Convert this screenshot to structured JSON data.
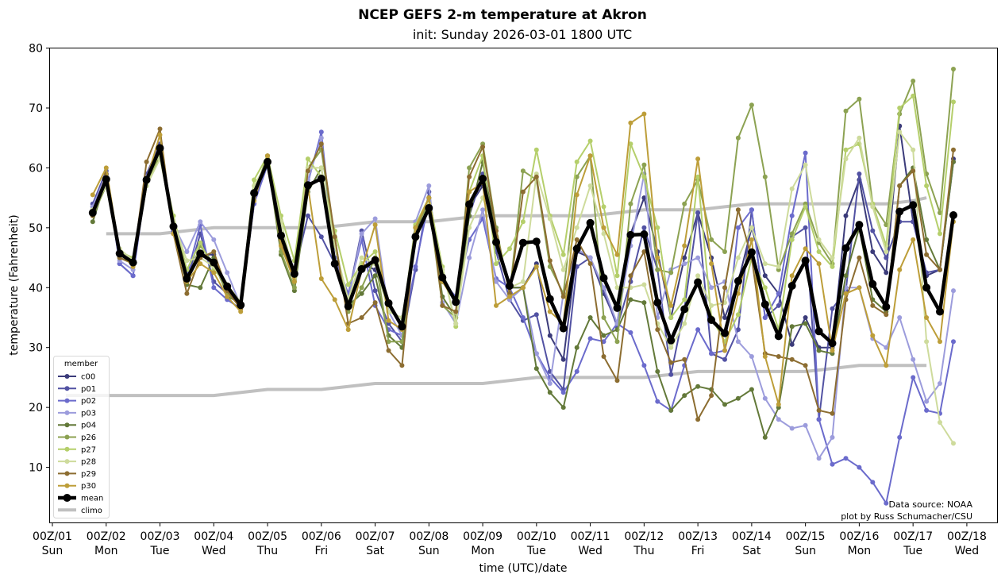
{
  "chart_data": {
    "type": "line",
    "title": "NCEP GEFS 2-m temperature at Akron",
    "subtitle": "init: Sunday 2026-03-01 1800 UTC",
    "xlabel": "time (UTC)/date",
    "ylabel": "temperature (Fahrenheit)",
    "ylim": [
      1,
      80
    ],
    "xlim_days": [
      0.95,
      18.55
    ],
    "yticks": [
      "10",
      "20",
      "30",
      "40",
      "50",
      "60",
      "70",
      "80"
    ],
    "xticks": [
      {
        "top": "00Z/01",
        "bottom": "Sun"
      },
      {
        "top": "00Z/02",
        "bottom": "Mon"
      },
      {
        "top": "00Z/03",
        "bottom": "Tue"
      },
      {
        "top": "00Z/04",
        "bottom": "Wed"
      },
      {
        "top": "00Z/05",
        "bottom": "Thu"
      },
      {
        "top": "00Z/06",
        "bottom": "Fri"
      },
      {
        "top": "00Z/07",
        "bottom": "Sat"
      },
      {
        "top": "00Z/08",
        "bottom": "Sun"
      },
      {
        "top": "00Z/09",
        "bottom": "Mon"
      },
      {
        "top": "00Z/10",
        "bottom": "Tue"
      },
      {
        "top": "00Z/11",
        "bottom": "Wed"
      },
      {
        "top": "00Z/12",
        "bottom": "Thu"
      },
      {
        "top": "00Z/13",
        "bottom": "Fri"
      },
      {
        "top": "00Z/14",
        "bottom": "Sat"
      },
      {
        "top": "00Z/15",
        "bottom": "Sun"
      },
      {
        "top": "00Z/16",
        "bottom": "Mon"
      },
      {
        "top": "00Z/17",
        "bottom": "Tue"
      },
      {
        "top": "00Z/18",
        "bottom": "Wed"
      }
    ],
    "x_start_day": 1.75,
    "x_step_hours": 6,
    "legend_title": "member",
    "legend_position": "lower-left",
    "source_note": "Data source: NOAA",
    "credit_note": "plot by Russ Schumacher/CSU",
    "series": [
      {
        "name": "c00",
        "color": "#3b3b7a",
        "values": [
          53.5,
          58.8,
          45.5,
          44.5,
          58.2,
          63.5,
          50.5,
          41.5,
          45.5,
          45.5,
          40.0,
          37.0,
          55.0,
          61.0,
          48.5,
          42.0,
          57.0,
          58.5,
          44.0,
          37.0,
          44.0,
          43.0,
          37.0,
          33.5,
          48.5,
          53.0,
          42.0,
          38.0,
          53.5,
          57.0,
          47.0,
          40.0,
          40.0,
          44.0,
          32.0,
          28.0,
          46.0,
          45.0,
          39.0,
          34.0,
          49.0,
          55.0,
          46.0,
          35.0,
          45.0,
          52.5,
          45.0,
          35.0,
          41.0,
          50.0,
          42.0,
          39.0,
          30.5,
          35.0,
          30.0,
          30.0,
          52.0,
          58.0,
          46.0,
          42.5,
          67.0,
          51.0,
          42.0,
          43.0,
          61.5
        ]
      },
      {
        "name": "p01",
        "color": "#5252a3",
        "values": [
          54.0,
          59.5,
          44.0,
          42.0,
          59.0,
          64.0,
          49.5,
          41.0,
          49.0,
          41.0,
          39.0,
          37.0,
          54.0,
          61.0,
          47.5,
          42.5,
          52.0,
          48.5,
          44.0,
          38.5,
          49.5,
          39.5,
          34.0,
          31.0,
          43.0,
          56.0,
          41.0,
          38.0,
          52.0,
          59.0,
          46.0,
          38.0,
          34.5,
          35.5,
          26.0,
          23.0,
          43.5,
          45.0,
          39.5,
          33.5,
          41.0,
          50.0,
          43.0,
          25.5,
          36.5,
          52.5,
          29.0,
          28.0,
          33.0,
          53.0,
          35.0,
          37.0,
          48.5,
          50.0,
          18.0,
          36.5,
          39.5,
          59.0,
          49.5,
          45.0,
          51.0,
          51.0,
          42.5,
          43.0,
          61.0
        ]
      },
      {
        "name": "p02",
        "color": "#6b6bcc",
        "values": [
          53.0,
          59.0,
          44.0,
          42.0,
          58.0,
          63.0,
          50.0,
          42.0,
          50.5,
          40.0,
          38.0,
          36.5,
          54.0,
          60.5,
          48.0,
          41.5,
          57.5,
          66.0,
          45.0,
          39.0,
          48.0,
          37.0,
          33.0,
          32.0,
          43.5,
          54.5,
          41.0,
          38.5,
          48.0,
          51.5,
          41.5,
          40.0,
          35.0,
          29.0,
          25.0,
          22.5,
          26.0,
          31.5,
          31.0,
          34.0,
          32.5,
          27.0,
          21.0,
          19.5,
          27.0,
          33.0,
          29.0,
          29.5,
          50.0,
          53.0,
          35.0,
          39.0,
          52.0,
          62.5,
          18.0,
          10.5,
          11.5,
          10.0,
          7.5,
          4.0,
          15.0,
          25.0,
          19.5,
          19.0,
          31.0
        ]
      },
      {
        "name": "p03",
        "color": "#9c9cdc",
        "values": [
          53.5,
          59.0,
          44.5,
          43.0,
          58.5,
          63.0,
          50.5,
          46.0,
          51.0,
          48.0,
          42.5,
          37.0,
          55.0,
          61.0,
          48.0,
          42.0,
          58.0,
          65.0,
          44.5,
          38.0,
          49.0,
          51.5,
          36.0,
          32.0,
          51.0,
          57.0,
          37.5,
          34.0,
          45.0,
          53.0,
          41.0,
          38.0,
          40.0,
          29.0,
          24.0,
          39.0,
          46.5,
          45.0,
          40.0,
          34.0,
          47.0,
          59.0,
          35.0,
          43.0,
          44.0,
          45.0,
          40.0,
          41.0,
          31.0,
          28.5,
          21.5,
          18.0,
          16.5,
          17.0,
          11.5,
          15.0,
          40.0,
          40.0,
          31.5,
          30.0,
          35.0,
          28.0,
          21.0,
          24.0,
          39.5
        ]
      },
      {
        "name": "p04",
        "color": "#637939",
        "values": [
          51.0,
          58.0,
          45.0,
          44.0,
          57.0,
          62.0,
          50.0,
          40.5,
          40.0,
          45.0,
          38.5,
          37.5,
          55.5,
          61.5,
          45.5,
          39.5,
          56.0,
          60.0,
          47.0,
          37.0,
          39.0,
          42.0,
          32.0,
          30.0,
          49.0,
          55.0,
          38.5,
          35.0,
          52.0,
          61.0,
          48.5,
          40.0,
          40.0,
          26.5,
          22.5,
          20.0,
          30.0,
          35.0,
          32.0,
          33.0,
          38.0,
          37.5,
          26.0,
          19.5,
          22.0,
          23.5,
          23.0,
          20.5,
          21.5,
          23.0,
          15.0,
          20.0,
          33.5,
          34.0,
          29.5,
          29.0,
          42.0,
          50.0,
          38.0,
          36.0,
          57.0,
          60.0,
          48.0,
          43.0,
          61.0
        ]
      },
      {
        "name": "p26",
        "color": "#8ca252",
        "values": [
          52.0,
          57.0,
          46.0,
          44.0,
          57.0,
          62.0,
          51.0,
          41.0,
          47.0,
          44.0,
          39.0,
          37.0,
          56.0,
          62.0,
          46.0,
          40.0,
          60.0,
          63.0,
          48.0,
          36.0,
          40.0,
          45.0,
          31.0,
          31.0,
          50.0,
          54.0,
          37.0,
          35.0,
          60.0,
          64.0,
          50.0,
          39.0,
          59.5,
          58.0,
          43.5,
          39.0,
          58.5,
          62.0,
          35.0,
          31.0,
          54.0,
          60.5,
          43.0,
          42.5,
          54.0,
          58.0,
          48.0,
          46.0,
          65.0,
          70.5,
          58.5,
          43.0,
          49.0,
          54.0,
          47.5,
          44.0,
          69.5,
          71.5,
          54.0,
          50.5,
          69.0,
          74.5,
          59.0,
          52.5,
          76.5
        ]
      },
      {
        "name": "p27",
        "color": "#b5cf6b",
        "values": [
          52.5,
          57.5,
          46.0,
          45.0,
          57.5,
          62.5,
          52.0,
          43.0,
          47.5,
          43.0,
          40.5,
          37.5,
          58.0,
          62.0,
          52.0,
          44.5,
          61.5,
          58.5,
          49.5,
          40.5,
          44.0,
          46.0,
          37.0,
          34.0,
          50.5,
          55.0,
          43.5,
          33.5,
          56.0,
          62.0,
          44.0,
          46.5,
          51.0,
          63.0,
          52.0,
          45.5,
          61.0,
          64.5,
          53.5,
          42.0,
          64.0,
          58.5,
          50.0,
          35.0,
          38.0,
          58.5,
          35.0,
          31.0,
          35.5,
          45.0,
          40.0,
          33.0,
          48.0,
          53.5,
          46.0,
          43.5,
          63.0,
          64.0,
          54.0,
          47.0,
          70.0,
          72.0,
          57.0,
          49.0,
          71.0
        ]
      },
      {
        "name": "p28",
        "color": "#cedb9c",
        "values": [
          53.0,
          57.0,
          46.5,
          44.5,
          57.0,
          61.5,
          51.0,
          44.5,
          45.0,
          43.5,
          40.0,
          37.5,
          57.0,
          61.0,
          51.0,
          41.5,
          60.0,
          60.0,
          47.0,
          38.0,
          45.0,
          44.0,
          36.0,
          35.0,
          48.0,
          54.0,
          43.0,
          34.0,
          50.0,
          55.0,
          49.0,
          40.0,
          41.0,
          59.0,
          51.5,
          43.0,
          50.0,
          57.0,
          49.0,
          40.0,
          40.0,
          40.5,
          34.0,
          30.0,
          34.0,
          42.0,
          37.0,
          37.5,
          45.0,
          50.0,
          44.0,
          43.5,
          56.5,
          60.5,
          48.0,
          45.0,
          61.5,
          65.0,
          53.5,
          46.0,
          66.0,
          63.0,
          31.0,
          17.5,
          14.0
        ]
      },
      {
        "name": "p29",
        "color": "#8c6d31",
        "values": [
          52.0,
          59.0,
          45.0,
          44.0,
          61.0,
          66.5,
          49.0,
          39.0,
          45.0,
          46.0,
          39.5,
          36.5,
          54.5,
          62.0,
          48.0,
          41.0,
          59.5,
          64.0,
          48.5,
          34.0,
          35.0,
          37.5,
          29.5,
          27.0,
          50.0,
          55.0,
          37.0,
          36.0,
          58.5,
          63.5,
          49.5,
          39.0,
          56.0,
          58.5,
          44.5,
          38.5,
          48.0,
          44.0,
          28.5,
          24.5,
          42.0,
          46.0,
          33.0,
          27.5,
          28.0,
          18.0,
          22.0,
          40.0,
          53.0,
          45.0,
          29.0,
          28.5,
          28.0,
          27.0,
          19.5,
          19.0,
          38.0,
          45.0,
          37.0,
          35.5,
          57.0,
          59.5,
          45.5,
          43.0,
          63.0
        ]
      },
      {
        "name": "p30",
        "color": "#bd9e39",
        "values": [
          55.5,
          60.0,
          46.0,
          43.5,
          58.0,
          65.5,
          49.0,
          41.0,
          44.0,
          42.5,
          38.5,
          36.0,
          54.5,
          62.0,
          47.0,
          41.0,
          57.0,
          41.5,
          38.0,
          33.0,
          43.0,
          50.5,
          34.5,
          33.0,
          50.0,
          55.0,
          41.0,
          37.5,
          56.0,
          57.5,
          37.0,
          38.5,
          40.0,
          43.5,
          36.0,
          34.0,
          55.5,
          62.0,
          50.0,
          45.5,
          67.5,
          69.0,
          45.0,
          37.0,
          47.0,
          61.5,
          44.0,
          29.5,
          39.0,
          48.0,
          28.5,
          20.5,
          42.0,
          46.5,
          44.0,
          29.5,
          39.0,
          40.0,
          32.0,
          27.0,
          43.0,
          48.0,
          35.0,
          31.0,
          51.0
        ]
      },
      {
        "name": "mean",
        "color": "#000000",
        "values": [
          52.5,
          58.1,
          45.7,
          44.2,
          58.0,
          63.3,
          50.2,
          41.5,
          45.7,
          44.2,
          40.2,
          37.1,
          55.8,
          61.0,
          48.7,
          42.3,
          57.1,
          58.2,
          44.0,
          36.9,
          43.1,
          44.6,
          37.4,
          33.5,
          48.5,
          53.3,
          41.7,
          37.6,
          53.9,
          58.2,
          47.6,
          40.3,
          47.5,
          47.7,
          38.1,
          33.2,
          46.5,
          50.8,
          41.6,
          36.6,
          48.8,
          48.9,
          37.5,
          31.2,
          36.4,
          40.9,
          34.6,
          32.4,
          41.1,
          45.9,
          37.2,
          31.9,
          40.3,
          44.5,
          32.7,
          30.7,
          46.6,
          50.5,
          40.6,
          36.8,
          52.7,
          53.8,
          40.0,
          36.0,
          52.1
        ]
      }
    ],
    "climo": {
      "name": "climo",
      "color": "#c0c0c0",
      "upper": {
        "x_days": [
          2,
          3,
          3.5,
          4,
          5,
          6,
          6.5,
          7,
          8,
          8.5,
          9,
          10,
          11,
          11.5,
          12,
          13,
          13.5,
          14,
          15,
          16,
          16.5,
          17,
          17.25
        ],
        "values": [
          49,
          49,
          49.5,
          50,
          50,
          50,
          50.5,
          51,
          51,
          51.5,
          52,
          52,
          52,
          52.5,
          53,
          53,
          53.5,
          54,
          54,
          54,
          54,
          54.5,
          55
        ]
      },
      "lower": {
        "x_days": [
          1.25,
          3,
          4,
          5,
          6,
          7,
          8,
          9,
          10,
          10.5,
          11,
          12,
          13,
          14,
          15,
          15.5,
          16,
          17,
          17.25
        ],
        "values": [
          22,
          22,
          22,
          23,
          23,
          24,
          24,
          24,
          25,
          25,
          25,
          25,
          26,
          26,
          26,
          26.5,
          27,
          27,
          27
        ]
      }
    }
  }
}
